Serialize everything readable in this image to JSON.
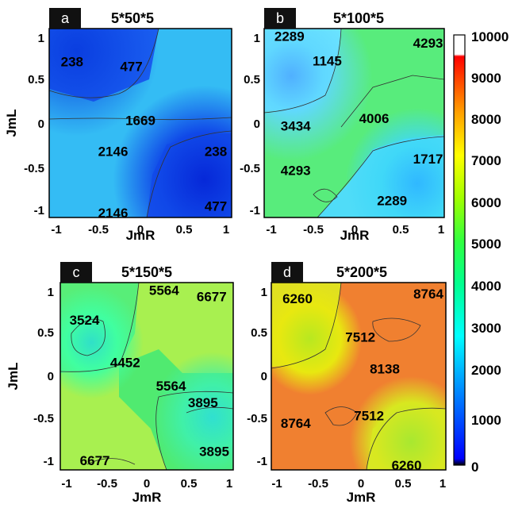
{
  "chart_data": [
    {
      "type": "heatmap",
      "panel_label": "a",
      "title": "5*50*5",
      "xlabel": "JmR",
      "ylabel": "JmL",
      "xlim": [
        -1,
        1
      ],
      "ylim": [
        -1,
        1
      ],
      "x_ticks": [
        "-1",
        "-0.5",
        "0",
        "0.5",
        "1"
      ],
      "y_ticks": [
        "1",
        "0.5",
        "0",
        "-0.5",
        "-1"
      ],
      "contour_labels": [
        {
          "text": "238",
          "x": -0.75,
          "y": 0.65
        },
        {
          "text": "477",
          "x": -0.1,
          "y": 0.6
        },
        {
          "text": "1669",
          "x": 0.0,
          "y": 0.03
        },
        {
          "text": "2146",
          "x": -0.3,
          "y": -0.3
        },
        {
          "text": "238",
          "x": 0.95,
          "y": -0.3
        },
        {
          "text": "2146",
          "x": -0.3,
          "y": -0.95
        },
        {
          "text": "477",
          "x": 0.92,
          "y": -0.88
        }
      ]
    },
    {
      "type": "heatmap",
      "panel_label": "b",
      "title": "5*100*5",
      "xlabel": "JmR",
      "ylabel": "JmL",
      "xlim": [
        -1,
        1
      ],
      "ylim": [
        -1,
        1
      ],
      "x_ticks": [
        "-1",
        "-0.5",
        "0",
        "0.5",
        "1"
      ],
      "y_ticks": [
        "1",
        "0.5",
        "0",
        "-0.5",
        "-1"
      ],
      "contour_labels": [
        {
          "text": "2289",
          "x": -0.72,
          "y": 0.92
        },
        {
          "text": "1145",
          "x": -0.3,
          "y": 0.66
        },
        {
          "text": "4293",
          "x": 0.82,
          "y": 0.85
        },
        {
          "text": "3434",
          "x": -0.65,
          "y": -0.03
        },
        {
          "text": "4006",
          "x": 0.22,
          "y": 0.05
        },
        {
          "text": "4293",
          "x": -0.65,
          "y": -0.5
        },
        {
          "text": "1717",
          "x": 0.82,
          "y": -0.38
        },
        {
          "text": "2289",
          "x": 0.42,
          "y": -0.82
        }
      ]
    },
    {
      "type": "heatmap",
      "panel_label": "c",
      "title": "5*150*5",
      "xlabel": "JmR",
      "ylabel": "JmL",
      "xlim": [
        -1,
        1
      ],
      "ylim": [
        -1,
        1
      ],
      "x_ticks": [
        "-1",
        "-0.5",
        "0",
        "0.5",
        "1"
      ],
      "y_ticks": [
        "1",
        "0.5",
        "0",
        "-0.5",
        "-1"
      ],
      "contour_labels": [
        {
          "text": "5564",
          "x": 0.2,
          "y": 0.92
        },
        {
          "text": "6677",
          "x": 0.75,
          "y": 0.85
        },
        {
          "text": "3524",
          "x": -0.72,
          "y": 0.6
        },
        {
          "text": "4452",
          "x": -0.25,
          "y": 0.15
        },
        {
          "text": "5564",
          "x": 0.28,
          "y": -0.1
        },
        {
          "text": "3895",
          "x": 0.65,
          "y": -0.28
        },
        {
          "text": "6677",
          "x": -0.6,
          "y": -0.9
        },
        {
          "text": "3895",
          "x": 0.78,
          "y": -0.8
        }
      ]
    },
    {
      "type": "heatmap",
      "panel_label": "d",
      "title": "5*200*5",
      "xlabel": "JmR",
      "ylabel": "JmL",
      "xlim": [
        -1,
        1
      ],
      "ylim": [
        -1,
        1
      ],
      "x_ticks": [
        "-1",
        "-0.5",
        "0",
        "0.5",
        "1"
      ],
      "y_ticks": [
        "1",
        "0.5",
        "0",
        "-0.5",
        "-1"
      ],
      "contour_labels": [
        {
          "text": "6260",
          "x": -0.7,
          "y": 0.83
        },
        {
          "text": "8764",
          "x": 0.8,
          "y": 0.88
        },
        {
          "text": "7512",
          "x": 0.02,
          "y": 0.42
        },
        {
          "text": "8138",
          "x": 0.3,
          "y": 0.08
        },
        {
          "text": "8764",
          "x": -0.72,
          "y": -0.5
        },
        {
          "text": "7512",
          "x": 0.12,
          "y": -0.42
        },
        {
          "text": "6260",
          "x": 0.55,
          "y": -0.95
        }
      ]
    },
    {
      "type": "colorbar",
      "ticks": [
        "10000",
        "9000",
        "8000",
        "7000",
        "6000",
        "5000",
        "4000",
        "3000",
        "2000",
        "1000",
        "0"
      ],
      "range": [
        0,
        10000
      ],
      "colors": [
        "#000000",
        "#0000ff",
        "#0080ff",
        "#00c0ff",
        "#00ffff",
        "#00ff80",
        "#40ff40",
        "#c0ff00",
        "#ffff00",
        "#ff8000",
        "#ff0000",
        "#ffffff"
      ]
    }
  ]
}
